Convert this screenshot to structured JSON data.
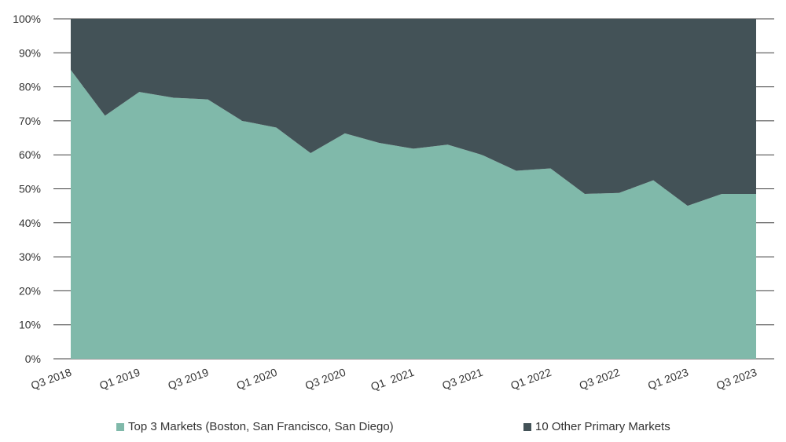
{
  "chart_data": {
    "type": "area",
    "stacked": "percent",
    "title": "",
    "xlabel": "",
    "ylabel": "",
    "ylim": [
      0,
      100
    ],
    "yticks": [
      "0%",
      "10%",
      "20%",
      "30%",
      "40%",
      "50%",
      "60%",
      "70%",
      "80%",
      "90%",
      "100%"
    ],
    "categories": [
      "Q3 2018",
      "Q4 2018",
      "Q1 2019",
      "Q2 2019",
      "Q3 2019",
      "Q4 2019",
      "Q1 2020",
      "Q2 2020",
      "Q3 2020",
      "Q4 2020",
      "Q1 2021",
      "Q2 2021",
      "Q3 2021",
      "Q4 2021",
      "Q1 2022",
      "Q2 2022",
      "Q3 2022",
      "Q4 2022",
      "Q1 2023",
      "Q2 2023",
      "Q3 2023"
    ],
    "xtick_labels": [
      "Q3 2018",
      "Q1 2019",
      "Q3 2019",
      "Q1 2020",
      "Q3 2020",
      "Q1  2021",
      "Q3 2021",
      "Q1 2022",
      "Q3 2022",
      "Q1 2023",
      "Q3 2023"
    ],
    "series": [
      {
        "name": "Top 3 Markets (Boston, San Francisco, San Diego)",
        "color": "#80b9aa",
        "values": [
          85,
          71.5,
          78.5,
          76.8,
          76.3,
          70,
          68,
          60.5,
          66.3,
          63.5,
          61.8,
          63,
          60,
          55.3,
          56,
          48.5,
          48.8,
          52.5,
          45,
          48.5,
          48.5
        ]
      },
      {
        "name": "10 Other Primary Markets",
        "color": "#435257",
        "values": [
          15,
          28.5,
          21.5,
          23.2,
          23.7,
          30,
          32,
          39.5,
          33.7,
          36.5,
          38.2,
          37,
          40,
          44.7,
          44,
          51.5,
          51.2,
          47.5,
          55,
          51.5,
          51.5
        ]
      }
    ],
    "legend_position": "bottom"
  }
}
